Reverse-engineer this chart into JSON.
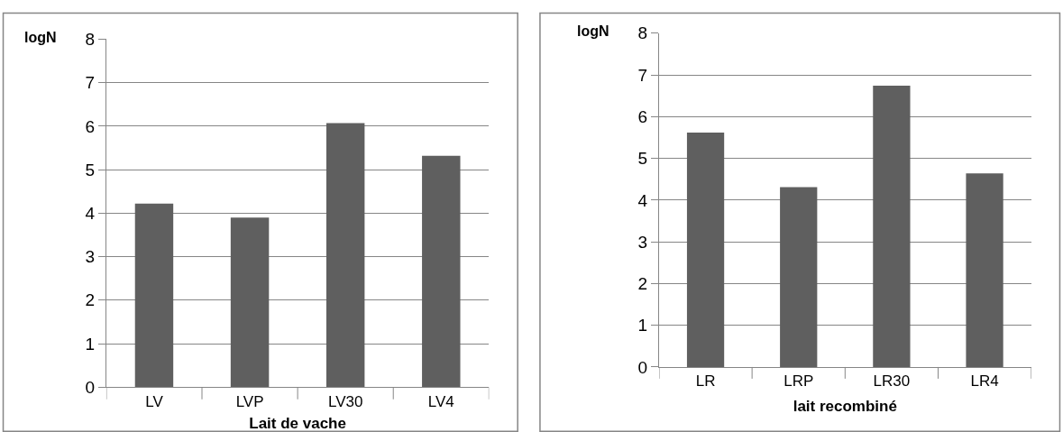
{
  "chart_data": [
    {
      "type": "bar",
      "xlabel": "Lait de vache",
      "ylabel": "logN",
      "categories": [
        "LV",
        "LVP",
        "LV30",
        "LV4"
      ],
      "values": [
        4.22,
        3.9,
        6.07,
        5.32
      ],
      "color": "#5f5f5f",
      "ylim": [
        0,
        8
      ],
      "yticks": [
        0,
        1,
        2,
        3,
        4,
        5,
        6,
        7,
        8
      ],
      "grid": "y"
    },
    {
      "type": "bar",
      "xlabel": "lait recombiné",
      "ylabel": "logN",
      "categories": [
        "LR",
        "LRP",
        "LR30",
        "LR4"
      ],
      "values": [
        5.62,
        4.31,
        6.74,
        4.64
      ],
      "color": "#5f5f5f",
      "ylim": [
        0,
        8
      ],
      "yticks": [
        0,
        1,
        2,
        3,
        4,
        5,
        6,
        7,
        8
      ],
      "grid": "y"
    }
  ]
}
